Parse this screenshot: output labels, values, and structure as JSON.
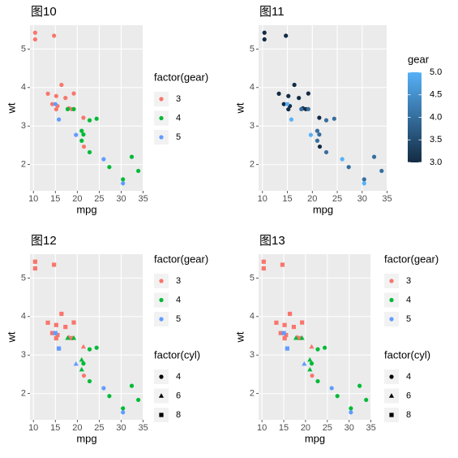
{
  "chart_data": [
    {
      "type": "scatter",
      "title": "图10",
      "x_label": "mpg",
      "y_label": "wt",
      "xlim": [
        9.225,
        35.075
      ],
      "ylim": [
        1.31745,
        5.61955
      ],
      "xticks": [
        10,
        15,
        20,
        25,
        30,
        35
      ],
      "yticks": [
        2,
        3,
        4,
        5
      ],
      "grid": true,
      "legend_title": "factor(gear)",
      "series": [
        {
          "name": "3",
          "color": "#F8766D",
          "x": [
            21.4,
            18.7,
            18.1,
            14.3,
            16.4,
            17.3,
            15.2,
            10.4,
            10.4,
            14.7,
            21.5,
            15.5,
            15.2,
            13.3,
            19.2
          ],
          "values": [
            3.215,
            3.44,
            3.46,
            3.57,
            4.07,
            3.73,
            3.78,
            5.25,
            5.424,
            5.345,
            2.465,
            3.52,
            3.435,
            3.84,
            3.845
          ]
        },
        {
          "name": "4",
          "color": "#00BA38",
          "x": [
            21,
            21,
            22.8,
            24.4,
            22.8,
            19.2,
            17.8,
            32.4,
            30.4,
            33.9,
            27.3,
            21.4
          ],
          "values": [
            2.62,
            2.875,
            2.32,
            3.19,
            3.15,
            3.44,
            3.44,
            2.2,
            1.615,
            1.835,
            1.935,
            2.78
          ]
        },
        {
          "name": "5",
          "color": "#619CFF",
          "x": [
            26,
            30.4,
            15.8,
            19.7,
            15
          ],
          "values": [
            2.14,
            1.513,
            3.17,
            2.77,
            3.57
          ]
        }
      ]
    },
    {
      "type": "scatter",
      "title": "图11",
      "x_label": "mpg",
      "y_label": "wt",
      "xlim": [
        9.225,
        35.075
      ],
      "ylim": [
        1.31745,
        5.61955
      ],
      "xticks": [
        10,
        15,
        20,
        25,
        30,
        35
      ],
      "yticks": [
        2,
        3,
        4,
        5
      ],
      "grid": true,
      "x": [
        21,
        21,
        22.8,
        21.4,
        18.7,
        18.1,
        14.3,
        24.4,
        22.8,
        19.2,
        17.8,
        16.4,
        17.3,
        15.2,
        10.4,
        10.4,
        14.7,
        32.4,
        30.4,
        33.9,
        21.5,
        15.5,
        15.2,
        13.3,
        19.2,
        27.3,
        26,
        30.4,
        15.8,
        19.7,
        15,
        21.4
      ],
      "values": [
        2.62,
        2.875,
        2.32,
        3.215,
        3.44,
        3.46,
        3.57,
        3.19,
        3.15,
        3.44,
        3.44,
        4.07,
        3.73,
        3.78,
        5.25,
        5.424,
        5.345,
        2.2,
        1.615,
        1.835,
        2.465,
        3.52,
        3.435,
        3.84,
        3.845,
        1.935,
        2.14,
        1.513,
        3.17,
        2.77,
        3.57,
        2.78
      ],
      "color_values": [
        4,
        4,
        4,
        3,
        3,
        3,
        3,
        4,
        4,
        4,
        4,
        3,
        3,
        3,
        3,
        3,
        3,
        4,
        4,
        4,
        3,
        3,
        3,
        3,
        3,
        4,
        5,
        5,
        5,
        5,
        5,
        4
      ],
      "colorbar": {
        "title": "gear",
        "low": "#132B43",
        "high": "#56B1F7",
        "lim": [
          3,
          5
        ],
        "ticks": [
          {
            "value": 3,
            "label": "3.0"
          },
          {
            "value": 3.5,
            "label": "3.5"
          },
          {
            "value": 4,
            "label": "4.0"
          },
          {
            "value": 4.5,
            "label": "4.5"
          },
          {
            "value": 5,
            "label": "5.0"
          }
        ]
      }
    },
    {
      "type": "scatter",
      "title": "图12",
      "x_label": "mpg",
      "y_label": "wt",
      "xlim": [
        9.225,
        35.075
      ],
      "ylim": [
        1.31745,
        5.61955
      ],
      "xticks": [
        10,
        15,
        20,
        25,
        30,
        35
      ],
      "yticks": [
        2,
        3,
        4,
        5
      ],
      "grid": true,
      "legend_title": "factor(gear)",
      "series": [
        {
          "name": "3",
          "color": "#F8766D",
          "x": [
            21.4,
            18.7,
            18.1,
            14.3,
            16.4,
            17.3,
            15.2,
            10.4,
            10.4,
            14.7,
            21.5,
            15.5,
            15.2,
            13.3,
            19.2
          ],
          "values": [
            3.215,
            3.44,
            3.46,
            3.57,
            4.07,
            3.73,
            3.78,
            5.25,
            5.424,
            5.345,
            2.465,
            3.52,
            3.435,
            3.84,
            3.845
          ],
          "cyl": [
            "6",
            "8",
            "6",
            "8",
            "8",
            "8",
            "8",
            "8",
            "8",
            "8",
            "4",
            "8",
            "8",
            "8",
            "8"
          ]
        },
        {
          "name": "4",
          "color": "#00BA38",
          "x": [
            21,
            21,
            22.8,
            24.4,
            22.8,
            19.2,
            17.8,
            32.4,
            30.4,
            33.9,
            27.3,
            21.4
          ],
          "values": [
            2.62,
            2.875,
            2.32,
            3.19,
            3.15,
            3.44,
            3.44,
            2.2,
            1.615,
            1.835,
            1.935,
            2.78
          ],
          "cyl": [
            "6",
            "6",
            "4",
            "4",
            "4",
            "6",
            "6",
            "4",
            "4",
            "4",
            "4",
            "4"
          ]
        },
        {
          "name": "5",
          "color": "#619CFF",
          "x": [
            26,
            30.4,
            15.8,
            19.7,
            15
          ],
          "values": [
            2.14,
            1.513,
            3.17,
            2.77,
            3.57
          ],
          "cyl": [
            "4",
            "4",
            "8",
            "6",
            "8"
          ]
        }
      ],
      "shape_legend": {
        "title": "factor(cyl)",
        "items": [
          {
            "name": "4",
            "shape": "circle"
          },
          {
            "name": "6",
            "shape": "triangle"
          },
          {
            "name": "8",
            "shape": "square"
          }
        ]
      }
    },
    {
      "type": "scatter",
      "title": "图13",
      "x_label": "mpg",
      "y_label": "wt",
      "xlim": [
        9.225,
        35.075
      ],
      "ylim": [
        1.31745,
        5.61955
      ],
      "xticks": [
        10,
        15,
        20,
        25,
        30,
        35
      ],
      "yticks": [
        2,
        3,
        4,
        5
      ],
      "grid": true,
      "legend_title": "factor(gear)",
      "series": [
        {
          "name": "3",
          "color": "#F8766D",
          "x": [
            21.4,
            18.7,
            18.1,
            14.3,
            16.4,
            17.3,
            15.2,
            10.4,
            10.4,
            14.7,
            21.5,
            15.5,
            15.2,
            13.3,
            19.2
          ],
          "values": [
            3.215,
            3.44,
            3.46,
            3.57,
            4.07,
            3.73,
            3.78,
            5.25,
            5.424,
            5.345,
            2.465,
            3.52,
            3.435,
            3.84,
            3.845
          ],
          "cyl": [
            "6",
            "8",
            "6",
            "8",
            "8",
            "8",
            "8",
            "8",
            "8",
            "8",
            "4",
            "8",
            "8",
            "8",
            "8"
          ]
        },
        {
          "name": "4",
          "color": "#00BA38",
          "x": [
            21,
            21,
            22.8,
            24.4,
            22.8,
            19.2,
            17.8,
            32.4,
            30.4,
            33.9,
            27.3,
            21.4
          ],
          "values": [
            2.62,
            2.875,
            2.32,
            3.19,
            3.15,
            3.44,
            3.44,
            2.2,
            1.615,
            1.835,
            1.935,
            2.78
          ],
          "cyl": [
            "6",
            "6",
            "4",
            "4",
            "4",
            "6",
            "6",
            "4",
            "4",
            "4",
            "4",
            "4"
          ]
        },
        {
          "name": "5",
          "color": "#619CFF",
          "x": [
            26,
            30.4,
            15.8,
            19.7,
            15
          ],
          "values": [
            2.14,
            1.513,
            3.17,
            2.77,
            3.57
          ],
          "cyl": [
            "4",
            "4",
            "8",
            "6",
            "8"
          ]
        }
      ],
      "shape_legend": {
        "title": "factor(cyl)",
        "items": [
          {
            "name": "4",
            "shape": "circle"
          },
          {
            "name": "6",
            "shape": "triangle"
          },
          {
            "name": "8",
            "shape": "square"
          }
        ]
      }
    }
  ]
}
